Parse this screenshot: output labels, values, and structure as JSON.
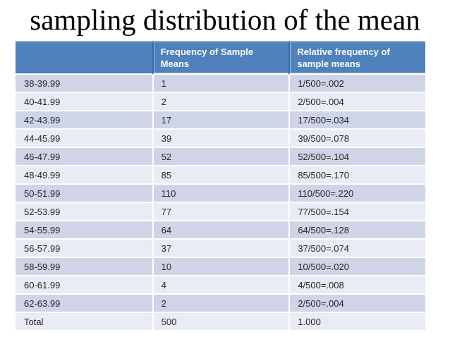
{
  "slide": {
    "title": "sampling distribution of the mean"
  },
  "table": {
    "columns": [
      "",
      "Frequency of Sample Means",
      "Relative frequency of sample means"
    ],
    "rows": [
      {
        "range": "38-39.99",
        "frequency": "1",
        "relative_frequency": "1/500=.002"
      },
      {
        "range": "40-41.99",
        "frequency": "2",
        "relative_frequency": "2/500=.004"
      },
      {
        "range": "42-43.99",
        "frequency": "17",
        "relative_frequency": "17/500=.034"
      },
      {
        "range": "44-45.99",
        "frequency": "39",
        "relative_frequency": "39/500=.078"
      },
      {
        "range": "46-47.99",
        "frequency": "52",
        "relative_frequency": "52/500=.104"
      },
      {
        "range": "48-49.99",
        "frequency": "85",
        "relative_frequency": "85/500=.170"
      },
      {
        "range": "50-51.99",
        "frequency": "110",
        "relative_frequency": "110/500=.220"
      },
      {
        "range": "52-53.99",
        "frequency": "77",
        "relative_frequency": "77/500=.154"
      },
      {
        "range": "54-55.99",
        "frequency": "64",
        "relative_frequency": "64/500=.128"
      },
      {
        "range": "56-57.99",
        "frequency": "37",
        "relative_frequency": "37/500=.074"
      },
      {
        "range": "58-59.99",
        "frequency": "10",
        "relative_frequency": "10/500=.020"
      },
      {
        "range": "60-61.99",
        "frequency": "4",
        "relative_frequency": "4/500=.008"
      },
      {
        "range": "62-63.99",
        "frequency": "2",
        "relative_frequency": "2/500=.004"
      },
      {
        "range": "Total",
        "frequency": "500",
        "relative_frequency": "1.000"
      }
    ]
  },
  "colors": {
    "header_bg": "#4F81BD",
    "header_text": "#FFFFFF",
    "header_divider": "#3A6CA4",
    "header_top_highlight": "#8FACD3",
    "row_band_dark": "#CFD5E7",
    "row_band_light": "#E9EBF5",
    "grid_line": "#FFFFFF",
    "body_text": "#262626",
    "title_text": "#000000"
  }
}
